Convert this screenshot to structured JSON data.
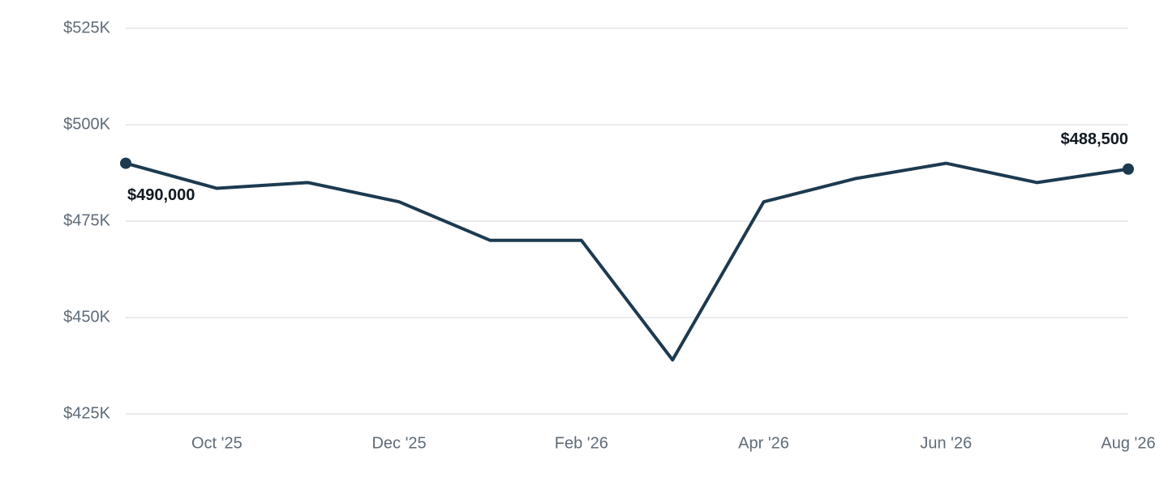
{
  "chart_data": {
    "type": "line",
    "categories": [
      null,
      "Oct '25",
      null,
      "Dec '25",
      null,
      "Feb '26",
      null,
      "Apr '26",
      null,
      "Jun '26",
      null,
      "Aug '26"
    ],
    "values": [
      490000,
      483500,
      485000,
      480000,
      470000,
      470000,
      439000,
      480000,
      486000,
      490000,
      485000,
      488500
    ],
    "value_labels": [
      "$490,000",
      null,
      null,
      null,
      null,
      null,
      null,
      null,
      null,
      null,
      null,
      "$488,500"
    ],
    "color": "#1c3a50",
    "ylim": [
      425000,
      525000
    ],
    "yticks": [
      {
        "value": 425000,
        "label": "$425K"
      },
      {
        "value": 450000,
        "label": "$450K"
      },
      {
        "value": 475000,
        "label": "$475K"
      },
      {
        "value": 500000,
        "label": "$500K"
      },
      {
        "value": 525000,
        "label": "$525K"
      }
    ],
    "grid": true
  }
}
